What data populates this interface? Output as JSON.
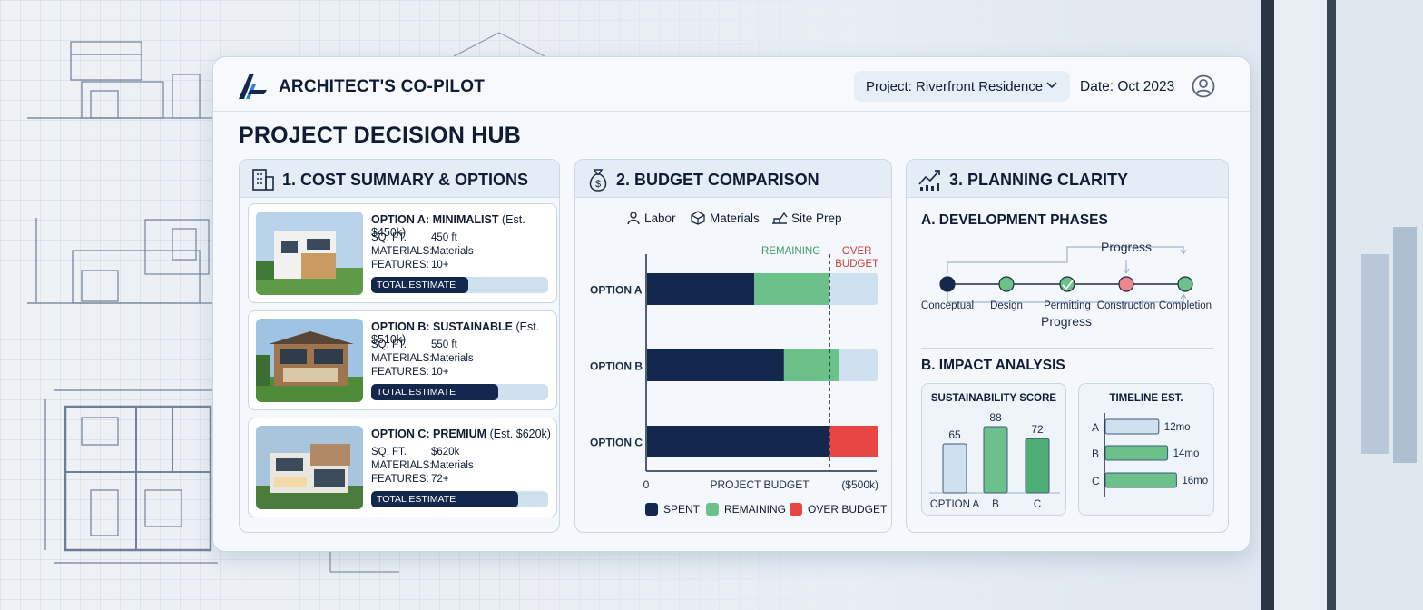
{
  "app": {
    "title": "ARCHITECT'S CO-PILOT",
    "project": "Project: Riverfront Residence",
    "date": "Date: Oct 2023"
  },
  "hub_title": "PROJECT DECISION HUB",
  "colors": {
    "navy": "#13284c",
    "green": "#6cc08a",
    "red": "#e84545",
    "light": "#cfe0ef"
  },
  "cost": {
    "title": "1. COST SUMMARY & OPTIONS",
    "options": [
      {
        "name": "OPTION A: MINIMALIST",
        "est": "(Est. $450k)",
        "sqft_label": "SQ. FT.",
        "sqft": "450 ft",
        "materials_label": "MATERIALS:",
        "materials": "Materials",
        "features_label": "FEATURES:",
        "features": "10+",
        "bar_label": "TOTAL ESTIMATE",
        "bar_fraction": 0.55
      },
      {
        "name": "OPTION B: SUSTAINABLE",
        "est": "(Est. $510k)",
        "sqft_label": "SQ. FT.",
        "sqft": "550 ft",
        "materials_label": "MATERIALS:",
        "materials": "Materials",
        "features_label": "FEATURES:",
        "features": "10+",
        "bar_label": "TOTAL ESTIMATE",
        "bar_fraction": 0.72
      },
      {
        "name": "OPTION C: PREMIUM",
        "est": "(Est. $620k)",
        "sqft_label": "SQ. FT.",
        "sqft": "$620k",
        "materials_label": "MATERIALS:",
        "materials": "Materials",
        "features_label": "FEATURES:",
        "features": "72+",
        "bar_label": "TOTAL ESTIMATE",
        "bar_fraction": 0.83
      }
    ]
  },
  "budget": {
    "title": "2. BUDGET COMPARISON",
    "filters": [
      "Labor",
      "Materials",
      "Site Prep"
    ],
    "header_remaining": "REMAINING",
    "header_over": "OVER BUDGET",
    "legend": [
      "SPENT",
      "REMAINING",
      "OVER BUDGET"
    ]
  },
  "chart_data": [
    {
      "type": "bar",
      "orientation": "horizontal",
      "title": "2. BUDGET COMPARISON",
      "categories": [
        "OPTION A",
        "OPTION B",
        "OPTION C"
      ],
      "series": [
        {
          "name": "SPENT",
          "values": [
            47,
            60,
            80
          ]
        },
        {
          "name": "REMAINING",
          "values": [
            33,
            24,
            0
          ]
        },
        {
          "name": "OVER BUDGET",
          "values": [
            0,
            0,
            21
          ]
        }
      ],
      "track_max": 101,
      "budget_line": 80,
      "xlabel": "PROJECT BUDGET",
      "x_start_label": "0",
      "x_unit_label": "($500k)"
    },
    {
      "type": "bar",
      "title": "SUSTAINABILITY SCORE",
      "categories": [
        "OPTION A",
        "B",
        "C"
      ],
      "values": [
        65,
        88,
        72
      ],
      "ylim": [
        0,
        100
      ]
    },
    {
      "type": "bar",
      "orientation": "horizontal",
      "title": "TIMELINE EST.",
      "categories": [
        "A",
        "B",
        "C"
      ],
      "values": [
        12,
        14,
        16
      ],
      "labels": [
        "12mo",
        "14mo",
        "16mo"
      ],
      "unit": "months"
    }
  ],
  "planning": {
    "title": "3. PLANNING CLARITY",
    "phases_title": "A. DEVELOPMENT PHASES",
    "phases": [
      {
        "label": "Conceptual",
        "color": "#13284c"
      },
      {
        "label": "Design",
        "color": "#6cc08a"
      },
      {
        "label": "Permitting",
        "color": "#6cc08a"
      },
      {
        "label": "Construction",
        "color": "#f08590"
      },
      {
        "label": "Completion",
        "color": "#6cc08a"
      }
    ],
    "progress_top": "Progress",
    "progress_bottom": "Progress",
    "impact_title": "B. IMPACT ANALYSIS",
    "sustain_title": "SUSTAINABILITY SCORE",
    "timeline_title": "TIMELINE EST."
  }
}
